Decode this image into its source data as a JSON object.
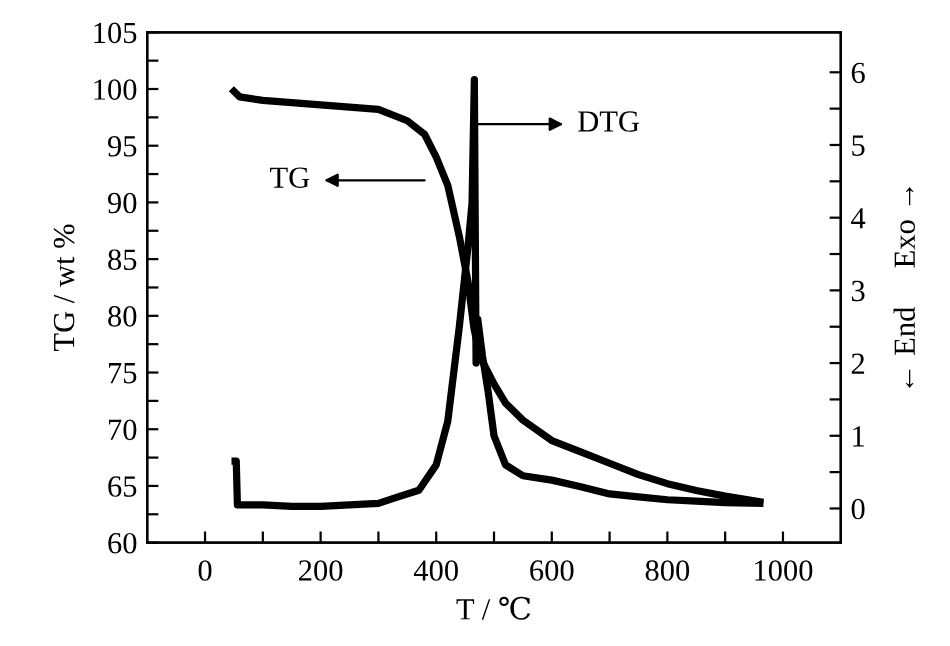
{
  "chart_data": {
    "type": "line",
    "xlabel": "T / ℃",
    "ylabel": "TG / wt %",
    "y2label": "← End     Exo →",
    "xlim": [
      -100,
      1100
    ],
    "xticks": [
      0,
      {
        "value": 100,
        "label": null
      },
      200,
      {
        "value": 300,
        "label": null
      },
      400,
      {
        "value": 500,
        "label": null
      },
      600,
      {
        "value": 700,
        "label": null
      },
      800,
      {
        "value": 900,
        "label": null
      },
      1000
    ],
    "ylim": [
      60,
      105
    ],
    "yticks": [
      60,
      {
        "value": 62.5,
        "label": null
      },
      65,
      {
        "value": 67.5,
        "label": null
      },
      70,
      {
        "value": 72.5,
        "label": null
      },
      75,
      {
        "value": 77.5,
        "label": null
      },
      80,
      {
        "value": 82.5,
        "label": null
      },
      85,
      {
        "value": 87.5,
        "label": null
      },
      90,
      {
        "value": 92.5,
        "label": null
      },
      95,
      {
        "value": 97.5,
        "label": null
      },
      100,
      {
        "value": 102.5,
        "label": null
      },
      105
    ],
    "y2lim": [
      -0.47,
      6.55
    ],
    "y2ticks": [
      0,
      {
        "value": 0.5,
        "label": null
      },
      1,
      {
        "value": 1.5,
        "label": null
      },
      2,
      {
        "value": 2.5,
        "label": null
      },
      3,
      {
        "value": 3.5,
        "label": null
      },
      4,
      {
        "value": 4.5,
        "label": null
      },
      5,
      {
        "value": 5.5,
        "label": null
      },
      6
    ],
    "grid": false,
    "legend": false,
    "marker": "none",
    "line_style": "solid",
    "series": [
      {
        "color": "#000000",
        "x": [
          50,
          60,
          100,
          200,
          300,
          350,
          380,
          400,
          420,
          440,
          455,
          465,
          475,
          490,
          500,
          520,
          550,
          600,
          650,
          700,
          750,
          800,
          850,
          900,
          960
        ],
        "values": [
          99.8,
          99.3,
          99.0,
          98.6,
          98.2,
          97.2,
          96.0,
          94.0,
          91.5,
          87.0,
          83.0,
          79.0,
          76.5,
          75.0,
          74.0,
          72.3,
          70.8,
          69.0,
          68.0,
          67.0,
          66.0,
          65.2,
          64.6,
          64.1,
          63.6
        ]
      },
      {
        "color": "#000000",
        "axis": "y2",
        "x": [
          52,
          54,
          56,
          60,
          100,
          150,
          200,
          250,
          300,
          330,
          370,
          400,
          420,
          440,
          455,
          462,
          466,
          469,
          472,
          480,
          490,
          500,
          520,
          550,
          600,
          650,
          700,
          750,
          800,
          850,
          900,
          960
        ],
        "values": [
          0.65,
          0.65,
          0.05,
          0.05,
          0.05,
          0.03,
          0.03,
          0.05,
          0.07,
          0.15,
          0.25,
          0.6,
          1.2,
          2.5,
          3.6,
          4.2,
          5.9,
          2.0,
          2.6,
          2.1,
          1.6,
          1.0,
          0.6,
          0.45,
          0.39,
          0.3,
          0.2,
          0.16,
          0.12,
          0.1,
          0.08,
          0.07
        ]
      }
    ],
    "annotations": [
      "TG",
      "DTG"
    ]
  }
}
